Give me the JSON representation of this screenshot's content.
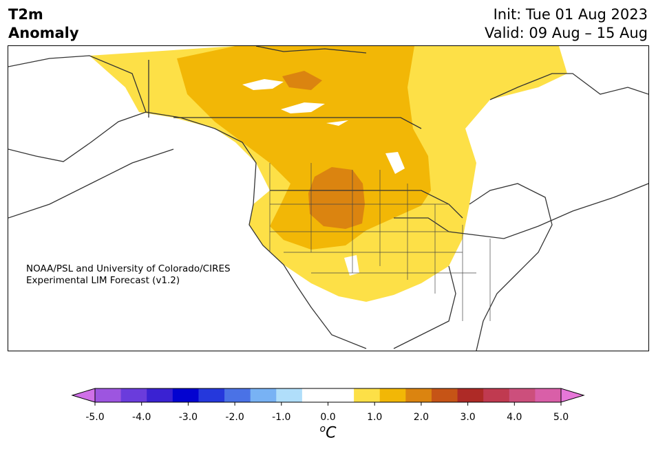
{
  "title": {
    "line1": "T2m",
    "line2": "Anomaly"
  },
  "header": {
    "init": "Init: Tue 01 Aug 2023",
    "valid": "Valid: 09 Aug – 15 Aug"
  },
  "credit": {
    "line1": "NOAA/PSL and University of Colorado/CIRES",
    "line2": "Experimental LIM Forecast (v1.2)"
  },
  "colorbar": {
    "unit": "oC",
    "ticks": [
      "-5.0",
      "-4.0",
      "-3.0",
      "-2.0",
      "-1.0",
      "0.0",
      "1.0",
      "2.0",
      "3.0",
      "4.0",
      "5.0"
    ],
    "colors": [
      "#d070e8",
      "#9d55e0",
      "#6a3cdc",
      "#3a22d2",
      "#0303d0",
      "#2538dc",
      "#4a72e6",
      "#78b2f4",
      "#b0defa",
      "#ffffff",
      "#ffffff",
      "#fde047",
      "#f2b706",
      "#db8410",
      "#c65416",
      "#ae2a26",
      "#c03a50",
      "#cc4f7c",
      "#d95fa8",
      "#e677d8"
    ]
  },
  "map": {
    "region": "North America",
    "anomaly_colors": {
      "weak_warm": "#fde047",
      "moderate_warm": "#f2b706",
      "strong_warm": "#db8410",
      "land_outline": "#333333"
    }
  }
}
